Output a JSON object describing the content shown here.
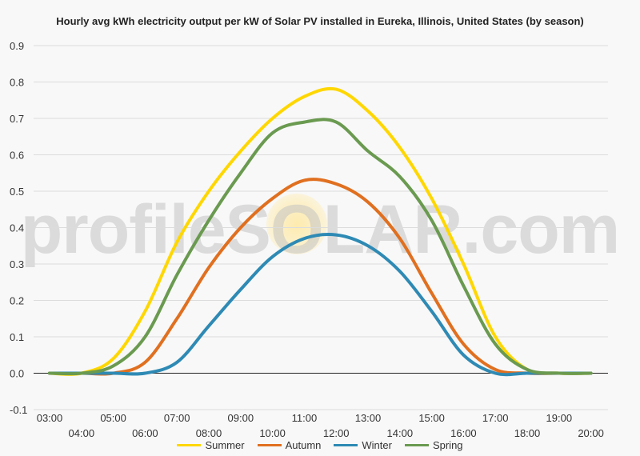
{
  "chart_data": {
    "type": "line",
    "title": "Hourly avg kWh electricity output per kW of Solar PV installed in Eureka, Illinois, United States (by season)",
    "xlabel": "",
    "ylabel": "",
    "watermark": "profileSOLAR.com",
    "ylim": [
      -0.1,
      0.9
    ],
    "yticks": [
      "-0.1",
      "0.0",
      "0.1",
      "0.2",
      "0.3",
      "0.4",
      "0.5",
      "0.6",
      "0.7",
      "0.8",
      "0.9"
    ],
    "x": [
      "03:00",
      "04:00",
      "05:00",
      "06:00",
      "07:00",
      "08:00",
      "09:00",
      "10:00",
      "11:00",
      "12:00",
      "13:00",
      "14:00",
      "15:00",
      "16:00",
      "17:00",
      "18:00",
      "19:00",
      "20:00"
    ],
    "grid": true,
    "legend_position": "bottom",
    "series": [
      {
        "name": "Summer",
        "color": "#ffd700",
        "values": [
          0.0,
          0.0,
          0.04,
          0.17,
          0.36,
          0.5,
          0.61,
          0.7,
          0.76,
          0.78,
          0.72,
          0.62,
          0.48,
          0.3,
          0.1,
          0.01,
          0.0,
          0.0
        ]
      },
      {
        "name": "Autumn",
        "color": "#e07020",
        "values": [
          0.0,
          0.0,
          0.0,
          0.03,
          0.15,
          0.29,
          0.4,
          0.48,
          0.53,
          0.52,
          0.47,
          0.37,
          0.22,
          0.08,
          0.01,
          0.0,
          0.0,
          0.0
        ]
      },
      {
        "name": "Winter",
        "color": "#2e8ab4",
        "values": [
          0.0,
          0.0,
          0.0,
          0.0,
          0.03,
          0.13,
          0.23,
          0.32,
          0.37,
          0.38,
          0.35,
          0.28,
          0.17,
          0.05,
          0.0,
          0.0,
          0.0,
          0.0
        ]
      },
      {
        "name": "Spring",
        "color": "#6a9a50",
        "values": [
          0.0,
          0.0,
          0.02,
          0.1,
          0.27,
          0.42,
          0.55,
          0.66,
          0.69,
          0.69,
          0.61,
          0.54,
          0.42,
          0.24,
          0.08,
          0.01,
          0.0,
          0.0
        ]
      }
    ]
  }
}
